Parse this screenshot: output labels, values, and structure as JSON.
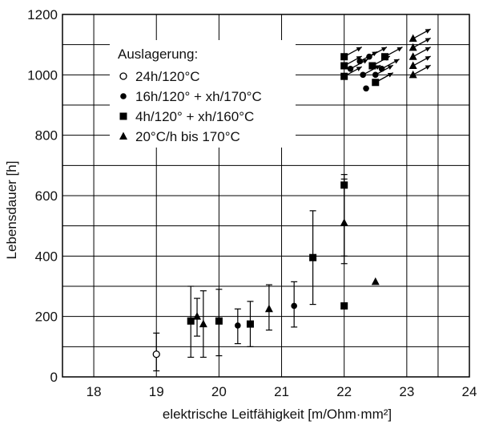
{
  "chart_data": {
    "type": "scatter",
    "xlabel": "elektrische Leitfähigkeit [m/Ohm·mm²]",
    "ylabel": "Lebensdauer [h]",
    "xlim": [
      17.5,
      24
    ],
    "ylim": [
      0,
      1200
    ],
    "x_ticks": [
      "18",
      "19",
      "20",
      "21",
      "22",
      "23",
      "24"
    ],
    "y_ticks": [
      "0",
      "200",
      "400",
      "600",
      "800",
      "1000",
      "1200"
    ],
    "grid": true,
    "legend": {
      "title": "Auslagerung:",
      "placement": "top-left"
    },
    "series": [
      {
        "name": "24h/120°C",
        "marker": "open-circle",
        "points": [
          {
            "x": 19.0,
            "y": 75,
            "ylow": 20,
            "yhigh": 145
          }
        ]
      },
      {
        "name": "16h/120° + xh/170°C",
        "marker": "filled-circle",
        "points": [
          {
            "x": 20.3,
            "y": 170,
            "ylow": 110,
            "yhigh": 225
          },
          {
            "x": 21.2,
            "y": 235,
            "ylow": 165,
            "yhigh": 315
          },
          {
            "x": 22.35,
            "y": 955,
            "arrow": false
          },
          {
            "x": 22.1,
            "y": 1020,
            "arrow": true
          },
          {
            "x": 22.25,
            "y": 1045,
            "arrow": true
          },
          {
            "x": 22.4,
            "y": 1060,
            "arrow": true
          },
          {
            "x": 22.5,
            "y": 1000,
            "arrow": true
          },
          {
            "x": 22.6,
            "y": 1020,
            "arrow": true
          },
          {
            "x": 22.3,
            "y": 1000,
            "arrow": true
          }
        ]
      },
      {
        "name": "4h/120° + xh/160°C",
        "marker": "filled-square",
        "points": [
          {
            "x": 19.55,
            "y": 185,
            "ylow": 65,
            "yhigh": 300
          },
          {
            "x": 20.0,
            "y": 185,
            "ylow": 70,
            "yhigh": 290
          },
          {
            "x": 20.5,
            "y": 175,
            "ylow": 100,
            "yhigh": 250
          },
          {
            "x": 21.5,
            "y": 395,
            "ylow": 240,
            "yhigh": 550
          },
          {
            "x": 22.0,
            "y": 635,
            "ylow": 375,
            "yhigh": 670
          },
          {
            "x": 22.0,
            "y": 235
          },
          {
            "x": 22.0,
            "y": 995,
            "arrow": true
          },
          {
            "x": 22.0,
            "y": 1030,
            "arrow": true
          },
          {
            "x": 22.0,
            "y": 1060,
            "arrow": true
          },
          {
            "x": 22.45,
            "y": 1030,
            "arrow": true
          },
          {
            "x": 22.65,
            "y": 1060,
            "arrow": true
          },
          {
            "x": 22.5,
            "y": 975,
            "arrow": true
          }
        ]
      },
      {
        "name": "20°C/h bis 170°C",
        "marker": "filled-triangle",
        "points": [
          {
            "x": 19.65,
            "y": 200,
            "ylow": 135,
            "yhigh": 260
          },
          {
            "x": 19.75,
            "y": 175,
            "ylow": 65,
            "yhigh": 285
          },
          {
            "x": 20.8,
            "y": 225,
            "ylow": 155,
            "yhigh": 305
          },
          {
            "x": 22.0,
            "y": 510,
            "ylow": 400,
            "yhigh": 655
          },
          {
            "x": 22.5,
            "y": 315
          },
          {
            "x": 23.1,
            "y": 1000,
            "arrow": true
          },
          {
            "x": 23.1,
            "y": 1030,
            "arrow": true
          },
          {
            "x": 23.1,
            "y": 1060,
            "arrow": true
          },
          {
            "x": 23.1,
            "y": 1090,
            "arrow": true
          },
          {
            "x": 23.1,
            "y": 1120,
            "arrow": true
          }
        ]
      }
    ]
  }
}
